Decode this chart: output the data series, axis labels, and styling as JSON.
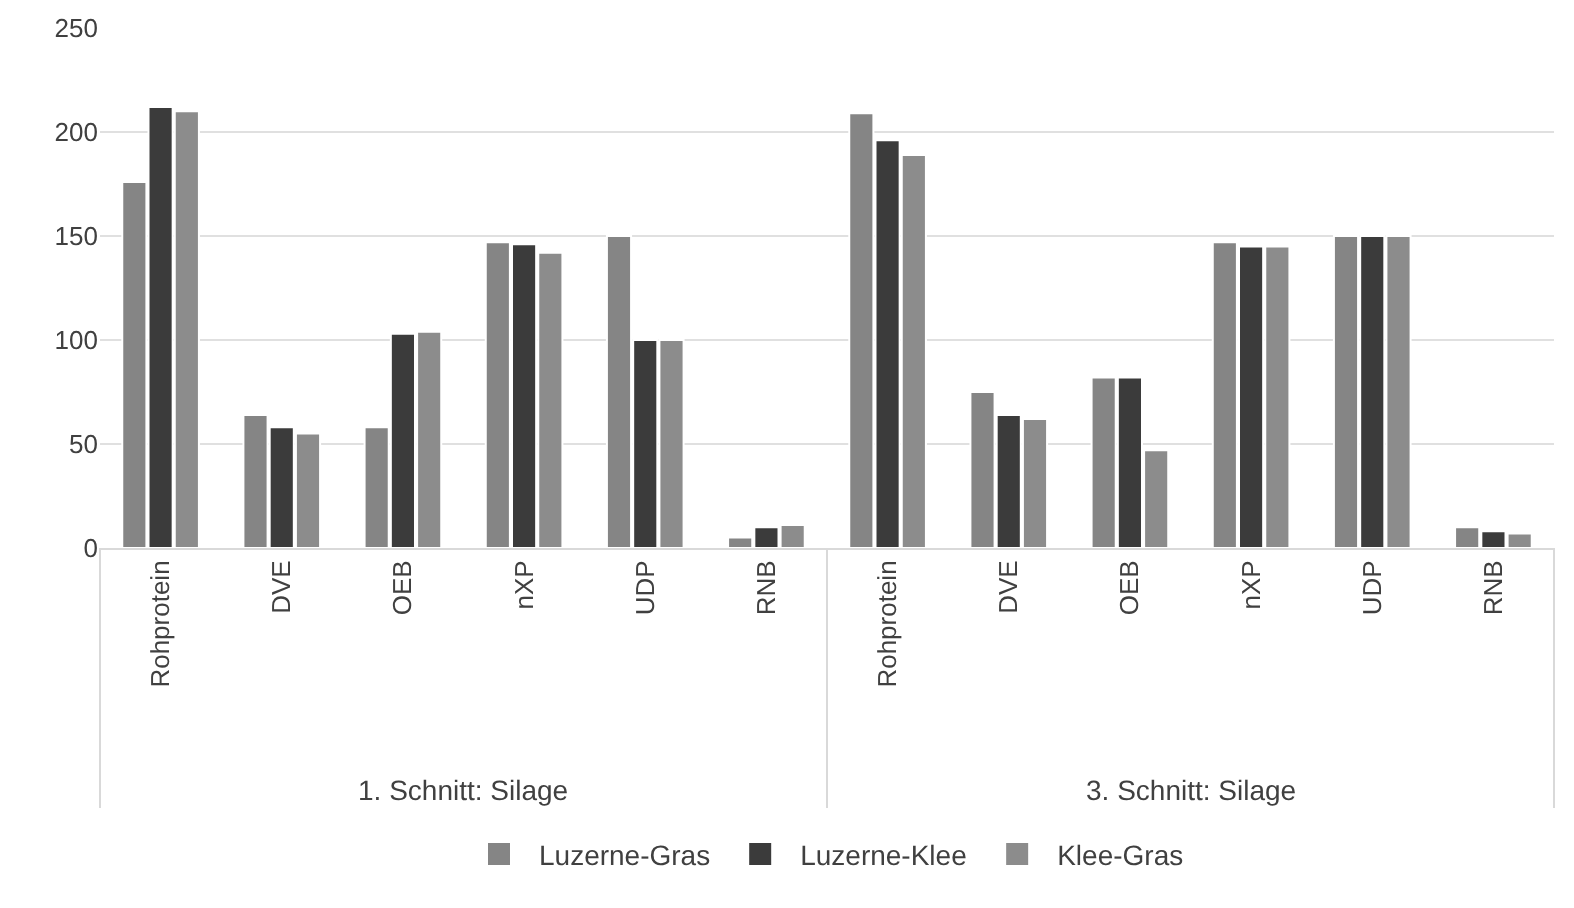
{
  "chart_data": {
    "type": "bar",
    "categories": [
      "Rohprotein",
      "DVE",
      "OEB",
      "nXP",
      "UDP",
      "RNB",
      "Rohprotein",
      "DVE",
      "OEB",
      "nXP",
      "UDP",
      "RNB"
    ],
    "series": [
      {
        "name": "Luzerne-Gras",
        "color": "#858585",
        "values": [
          176,
          64,
          58,
          147,
          150,
          5,
          209,
          75,
          82,
          147,
          150,
          10
        ]
      },
      {
        "name": "Luzerne-Klee",
        "color": "#3b3b3b",
        "values": [
          212,
          58,
          103,
          146,
          100,
          10,
          196,
          64,
          82,
          145,
          150,
          8
        ]
      },
      {
        "name": "Klee-Gras",
        "color": "#8c8c8c",
        "values": [
          210,
          55,
          104,
          142,
          100,
          11,
          189,
          62,
          47,
          145,
          150,
          7
        ]
      }
    ],
    "annotations": [
      "1. Schnitt: Silage",
      "3. Schnitt: Silage"
    ],
    "ylim": [
      0,
      250
    ],
    "yticks": [
      0,
      50,
      100,
      150,
      200,
      250
    ],
    "grid": "y",
    "legend": "bottom"
  }
}
